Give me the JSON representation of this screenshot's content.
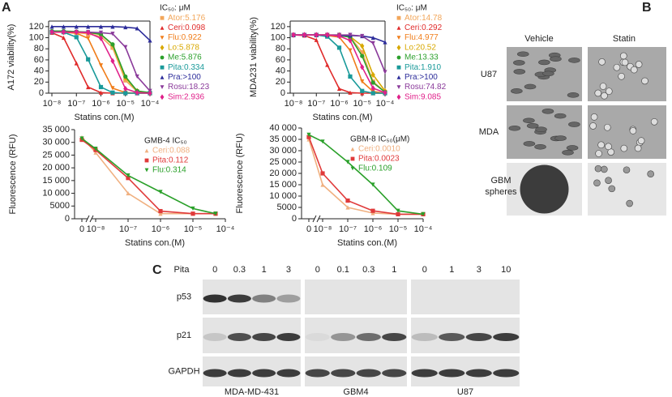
{
  "panel_a": "A",
  "chart_data": [
    {
      "type": "line",
      "ylabel": "A172 viability(%)",
      "xlabel": "Statins con.(M)",
      "legend_title": "IC₅₀: μM",
      "xscale": "log",
      "x": [
        1e-08,
        3e-08,
        1e-07,
        3e-07,
        1e-06,
        3e-06,
        1e-05,
        3e-05,
        0.0001
      ],
      "xlim": [
        1e-08,
        0.0001
      ],
      "xticks": [
        {
          "value": 1e-08,
          "label": "10⁻⁸"
        },
        {
          "value": 1e-07,
          "label": "10⁻⁷"
        },
        {
          "value": 1e-06,
          "label": "10⁻⁶"
        },
        {
          "value": 1e-05,
          "label": "10⁻⁵"
        },
        {
          "value": 0.0001,
          "label": "10⁻⁴"
        }
      ],
      "ylim": [
        0,
        130
      ],
      "yticks": [
        0,
        20,
        40,
        60,
        80,
        100,
        120
      ],
      "series": [
        {
          "name": "Ator:5.176",
          "color": "#f2a65a",
          "marker": "square",
          "values": [
            110,
            110,
            109,
            107,
            102,
            82,
            23,
            3,
            0
          ]
        },
        {
          "name": "Ceri:0.098",
          "color": "#e02b2b",
          "marker": "triangle",
          "values": [
            109,
            100,
            54,
            11,
            1,
            0,
            0,
            0,
            0
          ]
        },
        {
          "name": "Flu:0.922",
          "color": "#f07d1a",
          "marker": "triangle-down",
          "values": [
            110,
            110,
            108,
            99,
            50,
            9,
            1,
            0,
            0
          ]
        },
        {
          "name": "Lo:5.878",
          "color": "#d8a800",
          "marker": "diamond",
          "values": [
            110,
            110,
            110,
            109,
            106,
            87,
            28,
            4,
            0
          ]
        },
        {
          "name": "Me:5.876",
          "color": "#2ca02c",
          "marker": "circle",
          "values": [
            112,
            112,
            111,
            110,
            106,
            88,
            30,
            4,
            1
          ]
        },
        {
          "name": "Pita:0.334",
          "color": "#1a9a9a",
          "marker": "square",
          "values": [
            110,
            110,
            101,
            61,
            11,
            1,
            0,
            0,
            0
          ]
        },
        {
          "name": "Pra:>100",
          "color": "#2c2c9a",
          "marker": "triangle",
          "values": [
            120,
            120,
            120,
            120,
            120,
            120,
            119,
            117,
            95
          ]
        },
        {
          "name": "Rosu:18.23",
          "color": "#8a3a9a",
          "marker": "triangle-down",
          "values": [
            110,
            110,
            110,
            110,
            109,
            107,
            83,
            30,
            4
          ]
        },
        {
          "name": "Sim:2.936",
          "color": "#e0208a",
          "marker": "diamond",
          "values": [
            110,
            110,
            110,
            109,
            99,
            58,
            8,
            1,
            0
          ]
        }
      ]
    },
    {
      "type": "line",
      "ylabel": "MDA231 viability(%)",
      "xlabel": "Statins con.(M)",
      "legend_title": "IC₅₀: μM",
      "xscale": "log",
      "x": [
        1e-08,
        3e-08,
        1e-07,
        3e-07,
        1e-06,
        3e-06,
        1e-05,
        3e-05,
        0.0001
      ],
      "xlim": [
        1e-08,
        0.0001
      ],
      "xticks": [
        {
          "value": 1e-08,
          "label": "10⁻⁸"
        },
        {
          "value": 1e-07,
          "label": "10⁻⁷"
        },
        {
          "value": 1e-06,
          "label": "10⁻⁶"
        },
        {
          "value": 1e-05,
          "label": "10⁻⁵"
        },
        {
          "value": 0.0001,
          "label": "10⁻⁴"
        }
      ],
      "ylim": [
        0,
        130
      ],
      "yticks": [
        0,
        20,
        40,
        60,
        80,
        100,
        120
      ],
      "series": [
        {
          "name": "Ator:14.78",
          "color": "#f2a65a",
          "marker": "square",
          "values": [
            105,
            105,
            105,
            105,
            104,
            101,
            74,
            21,
            2
          ]
        },
        {
          "name": "Ceri:0.292",
          "color": "#e02b2b",
          "marker": "triangle",
          "values": [
            105,
            104,
            96,
            51,
            8,
            1,
            0,
            0,
            0
          ]
        },
        {
          "name": "Flu:4.977",
          "color": "#f07d1a",
          "marker": "triangle-down",
          "values": [
            105,
            105,
            105,
            104,
            101,
            77,
            21,
            3,
            0
          ]
        },
        {
          "name": "Lo:20.52",
          "color": "#d8a800",
          "marker": "diamond",
          "values": [
            105,
            105,
            105,
            105,
            105,
            102,
            85,
            33,
            4
          ]
        },
        {
          "name": "Me:13.33",
          "color": "#2ca02c",
          "marker": "circle",
          "values": [
            105,
            105,
            105,
            105,
            104,
            101,
            67,
            19,
            2
          ]
        },
        {
          "name": "Pita:1.910",
          "color": "#1a9a9a",
          "marker": "square",
          "values": [
            105,
            105,
            105,
            102,
            82,
            30,
            4,
            0,
            0
          ]
        },
        {
          "name": "Pra:>100",
          "color": "#2c2c9a",
          "marker": "triangle",
          "values": [
            105,
            105,
            105,
            105,
            104,
            104,
            103,
            100,
            92
          ]
        },
        {
          "name": "Rosu:74.82",
          "color": "#8a3a9a",
          "marker": "triangle-down",
          "values": [
            105,
            105,
            105,
            105,
            105,
            105,
            103,
            90,
            38
          ]
        },
        {
          "name": "Sim:9.085",
          "color": "#e0208a",
          "marker": "diamond",
          "values": [
            105,
            105,
            105,
            105,
            103,
            95,
            47,
            9,
            1
          ]
        }
      ]
    },
    {
      "type": "line",
      "ylabel": "Fluorescence (RFU)",
      "xlabel": "Statins con.(M)",
      "legend_title": "GMB-4 IC₅₀",
      "xscale": "log",
      "axis_break": true,
      "x": [
        0,
        1e-08,
        1e-07,
        1e-06,
        1e-05,
        5e-05
      ],
      "xlim": [
        1e-08,
        0.0001
      ],
      "xticks": [
        0,
        {
          "value": 1e-08,
          "label": "10⁻⁸"
        },
        {
          "value": 1e-07,
          "label": "10⁻⁷"
        },
        {
          "value": 1e-06,
          "label": "10⁻⁶"
        },
        {
          "value": 1e-05,
          "label": "10⁻⁵"
        },
        {
          "value": 0.0001,
          "label": "10⁻⁴"
        }
      ],
      "ylim": [
        0,
        35000
      ],
      "yticks": [
        0,
        5000,
        {
          "value": 10000,
          "label": "10 000"
        },
        {
          "value": 15000,
          "label": "15 000"
        },
        {
          "value": 20000,
          "label": "20 000"
        },
        {
          "value": 25000,
          "label": "25 000"
        },
        {
          "value": 30000,
          "label": "30 000"
        },
        {
          "value": 35000,
          "label": "35 000"
        }
      ],
      "series": [
        {
          "name": "Ceri:0.088",
          "color": "#f0b080",
          "marker": "triangle",
          "values": [
            32000,
            26000,
            10000,
            2000,
            2000,
            2000
          ]
        },
        {
          "name": "Pita:0.112",
          "color": "#e03a3a",
          "marker": "square",
          "values": [
            31000,
            27000,
            16000,
            3000,
            2000,
            2000
          ]
        },
        {
          "name": "Flu:0.314",
          "color": "#2aa02a",
          "marker": "triangle-down",
          "values": [
            31500,
            27500,
            17000,
            10500,
            4000,
            2000
          ]
        }
      ]
    },
    {
      "type": "line",
      "ylabel": "Fluorescence (RFU)",
      "xlabel": "Statins con.(M)",
      "legend_title": "GBM-8 IC₅₀(μM)",
      "xscale": "log",
      "axis_break": true,
      "x": [
        0,
        1e-08,
        1e-07,
        1e-06,
        1e-05,
        0.0001
      ],
      "xlim": [
        1e-08,
        0.0001
      ],
      "xticks": [
        0,
        {
          "value": 1e-08,
          "label": "10⁻⁸"
        },
        {
          "value": 1e-07,
          "label": "10⁻⁷"
        },
        {
          "value": 1e-06,
          "label": "10⁻⁶"
        },
        {
          "value": 1e-05,
          "label": "10⁻⁵"
        },
        {
          "value": 0.0001,
          "label": "10⁻⁴"
        }
      ],
      "ylim": [
        0,
        40000
      ],
      "yticks": [
        0,
        5000,
        {
          "value": 10000,
          "label": "10 000"
        },
        {
          "value": 15000,
          "label": "15 000"
        },
        {
          "value": 20000,
          "label": "20 000"
        },
        {
          "value": 25000,
          "label": "25 000"
        },
        {
          "value": 30000,
          "label": "30 000"
        },
        {
          "value": 35000,
          "label": "35 000"
        },
        {
          "value": 40000,
          "label": "40 000"
        }
      ],
      "series": [
        {
          "name": "Ceri:0.0010",
          "color": "#f0b080",
          "marker": "triangle",
          "values": [
            35000,
            15000,
            5000,
            2500,
            2000,
            2000
          ]
        },
        {
          "name": "Pita:0.0023",
          "color": "#e03a3a",
          "marker": "square",
          "values": [
            36000,
            20000,
            8000,
            3500,
            2000,
            2000
          ]
        },
        {
          "name": "Flu:0.109",
          "color": "#2aa02a",
          "marker": "triangle-down",
          "values": [
            37000,
            34000,
            25000,
            15000,
            3500,
            2000
          ]
        }
      ]
    }
  ],
  "microscopy": {
    "panel": "B",
    "columns": [
      "Vehicle",
      "Statin"
    ],
    "rows": [
      "U87",
      "MDA",
      "GBM spheres"
    ]
  },
  "western_blot": {
    "panel": "C",
    "treatment": "Pita",
    "rows": [
      "p53",
      "p21",
      "GAPDH"
    ],
    "groups": [
      {
        "name": "MDA-MD-431",
        "doses": [
          0,
          0.3,
          1,
          3
        ]
      },
      {
        "name": "GBM4",
        "doses": [
          0,
          0.1,
          0.3,
          1
        ]
      },
      {
        "name": "U87",
        "doses": [
          0,
          1,
          3,
          10
        ]
      }
    ]
  }
}
